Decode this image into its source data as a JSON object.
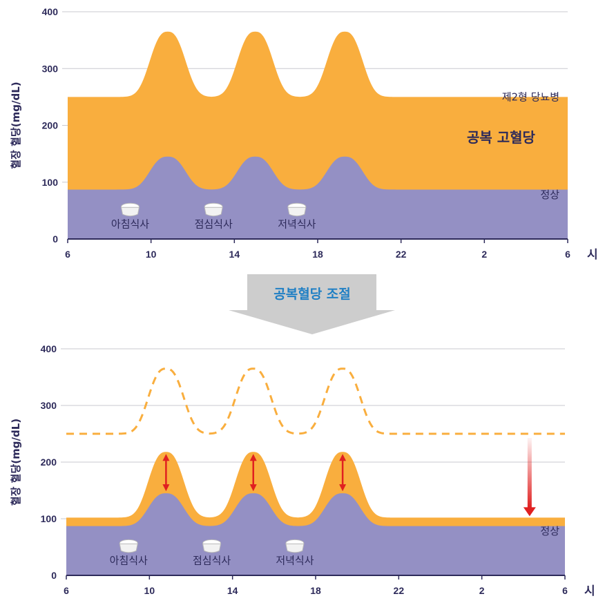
{
  "colors": {
    "hyper": "#f9ae3e",
    "normal": "#9490c4",
    "axis": "#2d2a5a",
    "grid": "#c9c9cf",
    "arrow": "#e02020",
    "banner_fill": "#cdcdcd",
    "banner_text": "#1f7fc4",
    "meal_icon": "#f2f2f2"
  },
  "transition": {
    "label": "공복혈당 조절",
    "icon": "down-arrow-banner"
  },
  "meal_icon": "rice-bowl-icon",
  "chart_data": [
    {
      "type": "area",
      "ylabel": "혈장 혈당(mg/dL)",
      "x_unit_label": "시",
      "x_tick_labels": [
        "6",
        "10",
        "14",
        "18",
        "22",
        "2",
        "6"
      ],
      "x_ticks_hours_since_6am": [
        0,
        4,
        8,
        12,
        16,
        20,
        24
      ],
      "y_ticks": [
        0,
        100,
        200,
        300,
        400
      ],
      "ylim": [
        0,
        400
      ],
      "grid": true,
      "series": [
        {
          "name": "제2형 당뇨병",
          "baseline": 250,
          "peak": 365,
          "trough_between_meals": 250
        },
        {
          "name": "정상",
          "baseline": 87,
          "peak": 145,
          "trough_between_meals": 87
        }
      ],
      "peak_times_hours_since_6am": [
        4.8,
        9.0,
        13.3
      ],
      "annotations": [
        {
          "text": "제2형 당뇨병"
        },
        {
          "text": "공복 고혈당"
        },
        {
          "text": "정상"
        }
      ],
      "meals": [
        {
          "label": "아침식사",
          "hour_since_6am": 3
        },
        {
          "label": "점심식사",
          "hour_since_6am": 7
        },
        {
          "label": "저녁식사",
          "hour_since_6am": 11
        }
      ]
    },
    {
      "type": "area",
      "ylabel": "혈장 혈당(mg/dL)",
      "x_unit_label": "시",
      "x_tick_labels": [
        "6",
        "10",
        "14",
        "18",
        "22",
        "2",
        "6"
      ],
      "x_ticks_hours_since_6am": [
        0,
        4,
        8,
        12,
        16,
        20,
        24
      ],
      "y_ticks": [
        0,
        100,
        200,
        300,
        400
      ],
      "ylim": [
        0,
        400
      ],
      "grid": true,
      "series": [
        {
          "style": "dashed",
          "baseline": 250,
          "peak": 365,
          "trough_between_meals": 250
        },
        {
          "baseline": 102,
          "peak": 218,
          "trough_between_meals": 102
        },
        {
          "name": "정상",
          "baseline": 87,
          "peak": 145,
          "trough_between_meals": 87
        }
      ],
      "peak_times_hours_since_6am": [
        4.8,
        9.0,
        13.3
      ],
      "annotations": [
        {
          "text": "정상"
        }
      ],
      "double_arrows_at_peaks": true,
      "fasting_drop_arrow": {
        "from": 250,
        "to": 102,
        "hour_since_6am": 22.3
      },
      "meals": [
        {
          "label": "아침식사",
          "hour_since_6am": 3
        },
        {
          "label": "점심식사",
          "hour_since_6am": 7
        },
        {
          "label": "저녁식사",
          "hour_since_6am": 11
        }
      ]
    }
  ]
}
